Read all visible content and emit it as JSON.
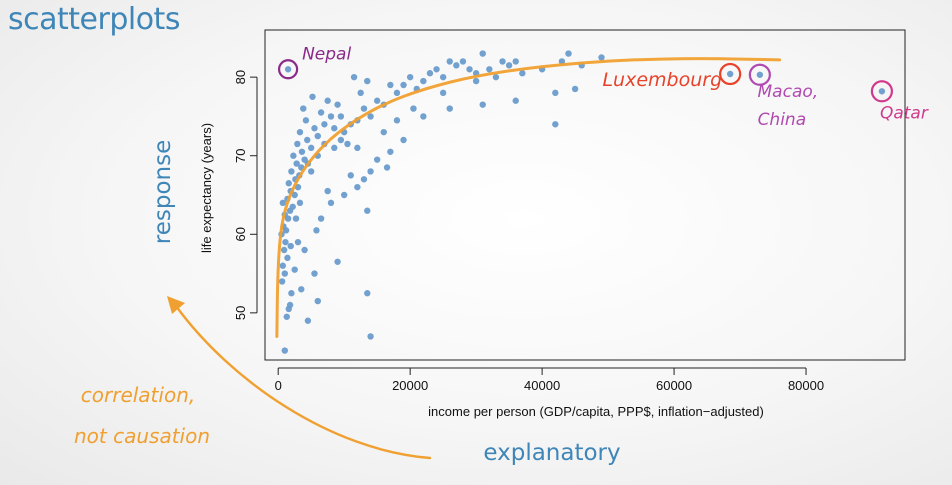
{
  "slide": {
    "title": "scatterplots",
    "annotation_left": [
      "correlation,",
      "not causation"
    ],
    "label_response": "response",
    "label_explanatory": "explanatory"
  },
  "colors": {
    "title": "#3f86b8",
    "points": "#6a9ccc",
    "curve": "#f0a030",
    "nepal": "#8a2a8a",
    "luxembourg": "#e8432a",
    "macao": "#b04ab0",
    "qatar": "#d03a8c",
    "note": "#f0a030"
  },
  "chart_data": {
    "type": "scatter",
    "xlabel": "income per person (GDP/capita, PPP$, inflation−adjusted)",
    "ylabel": "life expectancy (years)",
    "xlim": [
      -2000,
      95000
    ],
    "ylim": [
      44,
      86
    ],
    "xticks": [
      0,
      20000,
      40000,
      60000,
      80000
    ],
    "yticks": [
      50,
      60,
      70,
      80
    ],
    "grid": false,
    "points": [
      [
        1500,
        81
      ],
      [
        1000,
        45.2
      ],
      [
        1300,
        49.5
      ],
      [
        1600,
        50.5
      ],
      [
        1800,
        51
      ],
      [
        2000,
        52.5
      ],
      [
        600,
        54
      ],
      [
        1000,
        55
      ],
      [
        700,
        56
      ],
      [
        1400,
        57
      ],
      [
        900,
        58
      ],
      [
        1100,
        59
      ],
      [
        500,
        60
      ],
      [
        1200,
        60.5
      ],
      [
        800,
        61
      ],
      [
        1500,
        62
      ],
      [
        1000,
        62.5
      ],
      [
        1800,
        63
      ],
      [
        2200,
        63.5
      ],
      [
        700,
        64
      ],
      [
        1400,
        64.5
      ],
      [
        2500,
        65
      ],
      [
        1900,
        65.5
      ],
      [
        3000,
        66
      ],
      [
        1600,
        66.5
      ],
      [
        2600,
        67
      ],
      [
        3200,
        67.5
      ],
      [
        2000,
        68
      ],
      [
        3500,
        68.5
      ],
      [
        2800,
        69
      ],
      [
        4000,
        69.5
      ],
      [
        2300,
        70
      ],
      [
        3600,
        70.5
      ],
      [
        5000,
        71
      ],
      [
        2900,
        71.5
      ],
      [
        4400,
        72
      ],
      [
        6000,
        72.5
      ],
      [
        3300,
        73
      ],
      [
        5500,
        73.5
      ],
      [
        7000,
        74
      ],
      [
        4200,
        74.5
      ],
      [
        8000,
        75
      ],
      [
        6500,
        75.5
      ],
      [
        3800,
        76
      ],
      [
        9000,
        76.5
      ],
      [
        7500,
        77
      ],
      [
        5200,
        77.5
      ],
      [
        10000,
        73
      ],
      [
        11000,
        74
      ],
      [
        12000,
        74.5
      ],
      [
        8500,
        73.5
      ],
      [
        9500,
        75
      ],
      [
        13000,
        76
      ],
      [
        14000,
        75
      ],
      [
        15000,
        77
      ],
      [
        16000,
        76.5
      ],
      [
        12500,
        78
      ],
      [
        17000,
        79
      ],
      [
        11500,
        80
      ],
      [
        13500,
        79.5
      ],
      [
        18000,
        78
      ],
      [
        19000,
        79
      ],
      [
        20000,
        80
      ],
      [
        22000,
        79.5
      ],
      [
        23000,
        80.5
      ],
      [
        21000,
        78.5
      ],
      [
        24000,
        81
      ],
      [
        25000,
        80
      ],
      [
        26000,
        82
      ],
      [
        27000,
        81.5
      ],
      [
        28000,
        82
      ],
      [
        29000,
        81
      ],
      [
        30000,
        80.5
      ],
      [
        31000,
        83
      ],
      [
        32000,
        81
      ],
      [
        33000,
        80
      ],
      [
        34000,
        82
      ],
      [
        35000,
        81.5
      ],
      [
        36000,
        82
      ],
      [
        37000,
        80.5
      ],
      [
        40000,
        81
      ],
      [
        43000,
        82
      ],
      [
        44000,
        83
      ],
      [
        46000,
        81.5
      ],
      [
        49000,
        82.5
      ],
      [
        42000,
        78
      ],
      [
        36000,
        77
      ],
      [
        31000,
        76.5
      ],
      [
        26000,
        76
      ],
      [
        22000,
        75
      ],
      [
        18000,
        74.5
      ],
      [
        16000,
        73
      ],
      [
        19000,
        72
      ],
      [
        17000,
        70.5
      ],
      [
        15000,
        69.5
      ],
      [
        14000,
        68
      ],
      [
        13000,
        67
      ],
      [
        16500,
        68.5
      ],
      [
        12000,
        66
      ],
      [
        10000,
        65
      ],
      [
        8000,
        64
      ],
      [
        11000,
        67.5
      ],
      [
        7000,
        71.5
      ],
      [
        6000,
        70
      ],
      [
        5000,
        68
      ],
      [
        4500,
        69
      ],
      [
        3000,
        59
      ],
      [
        4000,
        58
      ],
      [
        5500,
        55
      ],
      [
        2500,
        55.5
      ],
      [
        3500,
        53
      ],
      [
        6000,
        51.5
      ],
      [
        9000,
        56.5
      ],
      [
        13500,
        52.5
      ],
      [
        14000,
        47
      ],
      [
        13500,
        63
      ],
      [
        42000,
        74
      ],
      [
        45000,
        78.5
      ],
      [
        4500,
        49
      ],
      [
        8500,
        71
      ],
      [
        9500,
        72
      ],
      [
        10500,
        71.5
      ],
      [
        20500,
        76
      ],
      [
        12000,
        71
      ],
      [
        25000,
        78
      ],
      [
        30000,
        79.5
      ],
      [
        7500,
        65.5
      ],
      [
        6500,
        62
      ],
      [
        5800,
        60.5
      ],
      [
        2700,
        62
      ],
      [
        3300,
        64
      ],
      [
        1900,
        58.5
      ],
      [
        68500,
        80.4
      ],
      [
        73000,
        80.3
      ],
      [
        91500,
        78.2
      ]
    ],
    "trend_curve": [
      [
        -200,
        47
      ],
      [
        -100,
        54
      ],
      [
        200,
        59
      ],
      [
        800,
        62.5
      ],
      [
        2000,
        65.5
      ],
      [
        4000,
        68.5
      ],
      [
        7000,
        71.5
      ],
      [
        11000,
        74.2
      ],
      [
        16000,
        76.6
      ],
      [
        22000,
        78.5
      ],
      [
        30000,
        80.2
      ],
      [
        40000,
        81.4
      ],
      [
        52000,
        82.2
      ],
      [
        64000,
        82.4
      ],
      [
        76000,
        82.2
      ]
    ],
    "annotations": [
      {
        "text": "Nepal",
        "x": 1500,
        "y": 81,
        "color_key": "nepal"
      },
      {
        "text": "Luxembourg",
        "x": 68500,
        "y": 80.4,
        "color_key": "luxembourg"
      },
      {
        "text": "Macao,",
        "x": 73000,
        "y": 80.3,
        "color_key": "macao"
      },
      {
        "text": "China",
        "x": 73000,
        "y": 80.3,
        "color_key": "macao"
      },
      {
        "text": "Qatar",
        "x": 91500,
        "y": 78.2,
        "color_key": "qatar"
      }
    ]
  }
}
